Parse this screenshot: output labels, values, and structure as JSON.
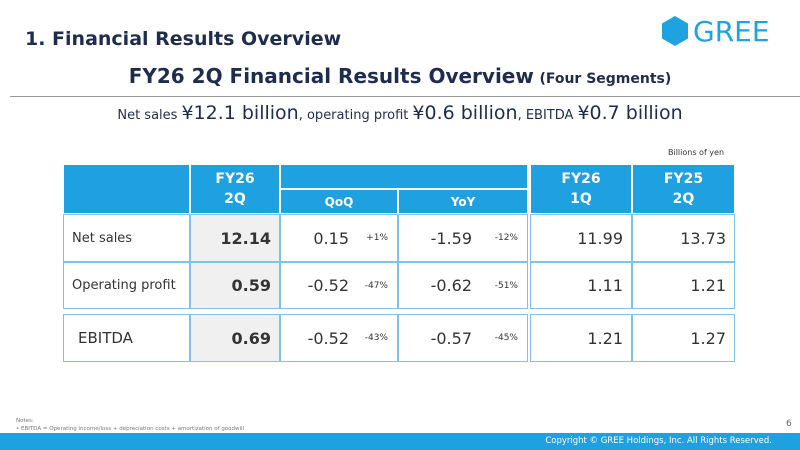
{
  "header": {
    "section_title": "1. Financial Results Overview",
    "logo": "GREE"
  },
  "title": {
    "main": "FY26 2Q Financial Results Overview",
    "suffix": "(Four Segments)"
  },
  "summary": {
    "parts": [
      "Net sales",
      "¥12.1 billion",
      ", operating profit",
      "¥0.6 billion",
      ", EBITDA",
      "¥0.7 billion"
    ]
  },
  "unit_note": "Billions of yen",
  "table": {
    "headers": {
      "current": [
        "FY26",
        "2Q"
      ],
      "qoq": "QoQ",
      "yoy": "YoY",
      "prev_q": [
        "FY26",
        "1Q"
      ],
      "prev_y": [
        "FY25",
        "2Q"
      ]
    },
    "rows": [
      {
        "label": "Net sales",
        "current": "12.14",
        "qoq": "0.15",
        "qoq_pct": "+1%",
        "yoy": "-1.59",
        "yoy_pct": "-12%",
        "prev_q": "11.99",
        "prev_y": "13.73"
      },
      {
        "label": "Operating profit",
        "current": "0.59",
        "qoq": "-0.52",
        "qoq_pct": "-47%",
        "yoy": "-0.62",
        "yoy_pct": "-51%",
        "prev_q": "1.11",
        "prev_y": "1.21"
      },
      {
        "label": "EBITDA",
        "current": "0.69",
        "qoq": "-0.52",
        "qoq_pct": "-43%",
        "yoy": "-0.57",
        "yoy_pct": "-45%",
        "prev_q": "1.21",
        "prev_y": "1.27"
      }
    ]
  },
  "notes": {
    "heading": "Notes:",
    "items": [
      "EBITDA = Operating income/loss + depreciation costs + amortization of goodwill"
    ]
  },
  "page_number": "6",
  "footer": "Copyright © GREE Holdings, Inc. All Rights Reserved."
}
